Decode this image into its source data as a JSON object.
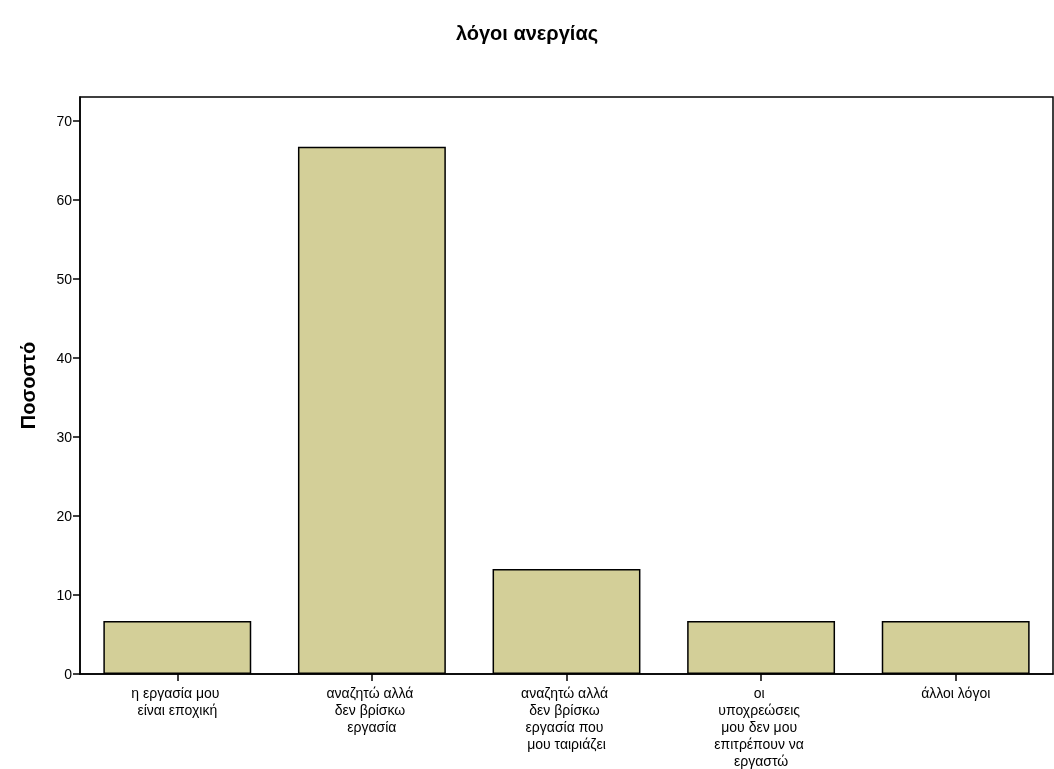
{
  "chart_data": {
    "type": "bar",
    "title": "λόγοι ανεργίας",
    "ylabel": "Ποσοστό",
    "categories": [
      "η εργασία μου είναι εποχική",
      "αναζητώ αλλά δεν βρίσκω εργασία",
      "αναζητώ αλλά δεν βρίσκω εργασία που μου ταιριάζει",
      "οι υποχρεώσεις μου δεν μου επιτρέπουν να εργαστώ",
      "άλλοι λόγοι"
    ],
    "values": [
      6.7,
      66.7,
      13.3,
      6.7,
      6.7
    ],
    "color": "#d3cf98",
    "ylim": [
      0,
      73
    ],
    "yticks": [
      0,
      10,
      20,
      30,
      40,
      50,
      60,
      70
    ],
    "grid": false
  }
}
